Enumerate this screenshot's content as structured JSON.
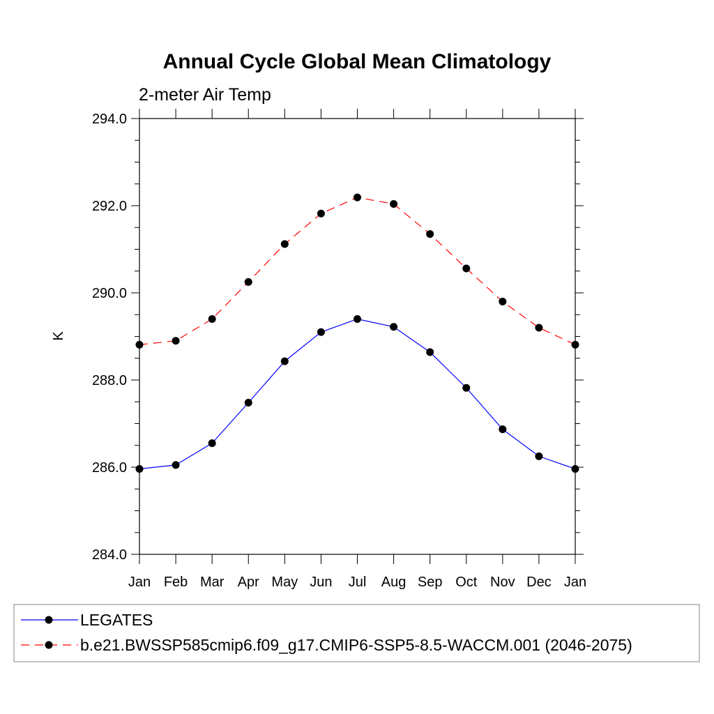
{
  "chart_data": {
    "type": "line",
    "title": "Annual Cycle Global Mean Climatology",
    "subtitle": "2-meter Air Temp",
    "xlabel": "",
    "ylabel": "K",
    "categories": [
      "Jan",
      "Feb",
      "Mar",
      "Apr",
      "May",
      "Jun",
      "Jul",
      "Aug",
      "Sep",
      "Oct",
      "Nov",
      "Dec",
      "Jan"
    ],
    "ylim": [
      284.0,
      294.0
    ],
    "yticks": [
      "284.0",
      "286.0",
      "288.0",
      "290.0",
      "292.0",
      "294.0"
    ],
    "ytick_values": [
      284.0,
      286.0,
      288.0,
      290.0,
      292.0,
      294.0
    ],
    "grid": false,
    "legend_position": "bottom",
    "series": [
      {
        "name": "LEGATES",
        "color": "#0000ff",
        "line_style": "solid",
        "marker": "filled-circle",
        "values": [
          285.96,
          286.05,
          286.55,
          287.48,
          288.43,
          289.1,
          289.4,
          289.22,
          288.64,
          287.82,
          286.87,
          286.25,
          285.96
        ]
      },
      {
        "name": "b.e21.BWSSP585cmip6.f09_g17.CMIP6-SSP5-8.5-WACCM.001 (2046-2075)",
        "color": "#ff0000",
        "line_style": "dashed",
        "marker": "filled-circle",
        "values": [
          288.81,
          288.9,
          289.4,
          290.25,
          291.12,
          291.82,
          292.19,
          292.04,
          291.35,
          290.56,
          289.8,
          289.2,
          288.81
        ]
      }
    ]
  }
}
